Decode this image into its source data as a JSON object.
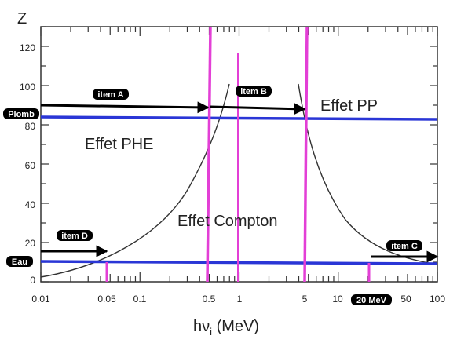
{
  "axes": {
    "y_title": "Z",
    "x_title_main": "hν",
    "x_title_sub": "i",
    "x_title_unit": " (MeV)",
    "x_ticks": [
      "0.01",
      "0.05",
      "0.1",
      "0.5",
      "1",
      "5",
      "10",
      "50",
      "100"
    ],
    "y_ticks": [
      "0",
      "20",
      "40",
      "60",
      "80",
      "100",
      "120"
    ]
  },
  "regions": {
    "phe": "Effet PHE",
    "compton": "Effet Compton",
    "pp": "Effet PP"
  },
  "tags": {
    "plomb": "Plomb",
    "eau": "Eau",
    "item_a": "item A",
    "item_b": "item B",
    "item_c": "item C",
    "item_d": "item D",
    "mev20": "20 MeV"
  },
  "colors": {
    "material_line": "#2a36d6",
    "energy_line": "#e33fd6",
    "arrow": "#000000",
    "curve": "#333333",
    "tag_bg": "#000000"
  }
}
